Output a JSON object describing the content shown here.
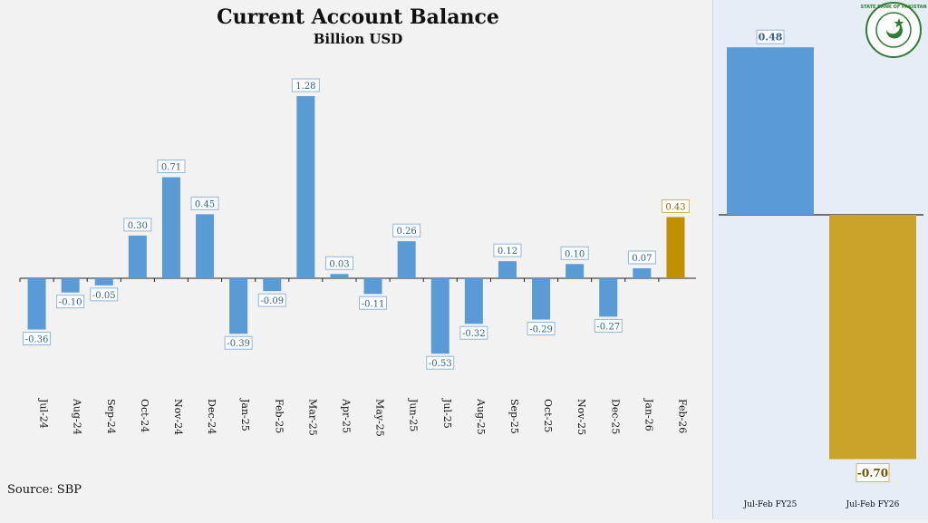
{
  "title": "Current Account Balance",
  "subtitle": "Billion USD",
  "source": "Source: SBP",
  "logo_text": "STATE BANK OF PAKISTAN",
  "colors": {
    "blue": "#5b9bd5",
    "gold": "#bf9000",
    "gold_light": "#c9a227",
    "axis": "#222222"
  },
  "chart_data": [
    {
      "type": "bar",
      "title": "Current Account Balance",
      "subtitle": "Billion USD",
      "ylabel": "Billion USD",
      "categories": [
        "Jul-24",
        "Aug-24",
        "Sep-24",
        "Oct-24",
        "Nov-24",
        "Dec-24",
        "Jan-25",
        "Feb-25",
        "Mar-25",
        "Apr-25",
        "May-25",
        "Jun-25",
        "Jul-25",
        "Aug-25",
        "Sep-25",
        "Oct-25",
        "Nov-25",
        "Dec-25",
        "Jan-26",
        "Feb-26"
      ],
      "values": [
        -0.36,
        -0.1,
        -0.05,
        0.3,
        0.71,
        0.45,
        -0.39,
        -0.09,
        1.28,
        0.03,
        -0.11,
        0.26,
        -0.53,
        -0.32,
        0.12,
        -0.29,
        0.1,
        -0.27,
        0.07,
        0.43
      ],
      "labels": [
        "-0.36",
        "-0.10",
        "-0.05",
        "0.30",
        "0.71",
        "0.45",
        "-0.39",
        "-0.09",
        "1.28",
        "0.03",
        "-0.11",
        "0.26",
        "-0.53",
        "-0.32",
        "0.12",
        "-0.29",
        "0.10",
        "-0.27",
        "0.07",
        "0.43"
      ],
      "highlight": "Feb-26"
    },
    {
      "type": "bar",
      "categories": [
        "Jul-Feb FY25",
        "Jul-Feb FY26"
      ],
      "values": [
        0.48,
        -0.7
      ],
      "labels": [
        "0.48",
        "-0.70"
      ]
    }
  ]
}
